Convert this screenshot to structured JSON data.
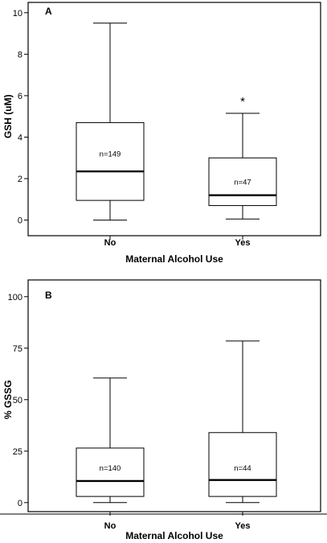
{
  "chart_data": [
    {
      "type": "box",
      "panel_label": "A",
      "title": "",
      "xlabel": "Maternal Alcohol Use",
      "ylabel": "GSH (uM)",
      "ylim": [
        0,
        10
      ],
      "yticks": [
        0,
        2,
        4,
        6,
        8,
        10
      ],
      "ytick_labels": [
        "0",
        "2",
        "4",
        "6",
        "8",
        "10"
      ],
      "categories": [
        "No",
        "Yes"
      ],
      "boxes": [
        {
          "category": "No",
          "min": 0.0,
          "q1": 0.95,
          "median": 2.35,
          "q3": 4.7,
          "max": 9.5,
          "n_label": "n=149",
          "n_label_value": 3.2,
          "marker": ""
        },
        {
          "category": "Yes",
          "min": 0.05,
          "q1": 0.7,
          "median": 1.2,
          "q3": 3.0,
          "max": 5.15,
          "n_label": "n=47",
          "n_label_value": 1.85,
          "marker": "*"
        }
      ]
    },
    {
      "type": "box",
      "panel_label": "B",
      "title": "",
      "xlabel": "Maternal Alcohol Use",
      "ylabel": "% GSSG",
      "ylim": [
        0,
        100
      ],
      "yticks": [
        0,
        25,
        50,
        75,
        100
      ],
      "ytick_labels": [
        "0",
        "25",
        "50",
        "75",
        "100"
      ],
      "categories": [
        "No",
        "Yes"
      ],
      "boxes": [
        {
          "category": "No",
          "min": 0.0,
          "q1": 3.0,
          "median": 10.5,
          "q3": 26.5,
          "max": 60.5,
          "n_label": "n=140",
          "n_label_value": 17.0,
          "marker": ""
        },
        {
          "category": "Yes",
          "min": 0.0,
          "q1": 3.0,
          "median": 11.0,
          "q3": 34.0,
          "max": 78.5,
          "n_label": "n=44",
          "n_label_value": 17.0,
          "marker": ""
        }
      ]
    }
  ]
}
